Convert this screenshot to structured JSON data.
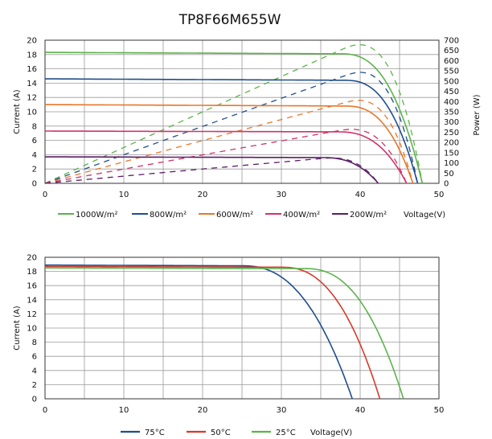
{
  "title": "TP8F66M655W",
  "chart_data": [
    {
      "type": "line",
      "title": "TP8F66M655W",
      "xlabel": "Voltage(V)",
      "ylabel": "Current (A)",
      "y2label": "Power (W)",
      "xlim": [
        0,
        50
      ],
      "ylim": [
        0,
        20
      ],
      "y2lim": [
        0,
        700
      ],
      "x_ticks": [
        0,
        10,
        20,
        30,
        40,
        50
      ],
      "y_ticks": [
        0,
        2,
        4,
        6,
        8,
        10,
        12,
        14,
        16,
        18,
        20
      ],
      "y2_ticks": [
        0,
        50,
        100,
        150,
        200,
        250,
        300,
        350,
        400,
        450,
        500,
        550,
        600,
        650,
        700
      ],
      "grid": true,
      "legend_position": "bottom",
      "series": [
        {
          "name": "1000W/m²",
          "color": "#5cb34a",
          "isc": 18.3,
          "voc": 47.9,
          "knee": 37.5,
          "curr_x": [
            0,
            37.5,
            42,
            45,
            47.9
          ],
          "curr_y": [
            18.3,
            18.1,
            17.0,
            12.0,
            0
          ],
          "pmax": 655,
          "vmp": 40.8
        },
        {
          "name": "800W/m²",
          "color": "#1f4e8c",
          "isc": 14.6,
          "voc": 47.3,
          "knee": 38,
          "curr_x": [
            0,
            38,
            42,
            45,
            47.3
          ],
          "curr_y": [
            14.6,
            14.4,
            13.3,
            9.5,
            0
          ],
          "pmax": 525,
          "vmp": 40.5
        },
        {
          "name": "600W/m²",
          "color": "#e8772a",
          "isc": 11.0,
          "voc": 46.7,
          "knee": 38,
          "curr_x": [
            0,
            38,
            42,
            44.5,
            46.7
          ],
          "curr_y": [
            11.0,
            10.8,
            9.9,
            7.0,
            0
          ],
          "pmax": 395,
          "vmp": 40.3
        },
        {
          "name": "400W/m²",
          "color": "#d0336a",
          "isc": 7.3,
          "voc": 45.9,
          "knee": 37,
          "curr_x": [
            0,
            37,
            41,
            44,
            45.9
          ],
          "curr_y": [
            7.3,
            7.2,
            6.6,
            4.4,
            0
          ],
          "pmax": 262,
          "vmp": 39.8
        },
        {
          "name": "200W/m²",
          "color": "#5a1e66",
          "isc": 3.7,
          "voc": 42.3,
          "knee": 35,
          "curr_x": [
            0,
            35,
            39,
            41,
            42.3
          ],
          "curr_y": [
            3.7,
            3.6,
            3.2,
            2.0,
            0
          ],
          "pmax": 128,
          "vmp": 37.5
        }
      ]
    },
    {
      "type": "line",
      "title": "",
      "xlabel": "Voltage(V)",
      "ylabel": "Current (A)",
      "xlim": [
        0,
        50
      ],
      "ylim": [
        0,
        20
      ],
      "x_ticks": [
        0,
        10,
        20,
        30,
        40,
        50
      ],
      "y_ticks": [
        0,
        2,
        4,
        6,
        8,
        10,
        12,
        14,
        16,
        18,
        20
      ],
      "grid": true,
      "legend_position": "bottom",
      "series": [
        {
          "name": "75°C",
          "color": "#1f4e8c",
          "x": [
            0,
            25,
            30,
            33,
            35,
            37,
            38.5,
            39.0
          ],
          "y": [
            18.9,
            18.8,
            18.2,
            16.5,
            13.5,
            8.5,
            3.5,
            0
          ]
        },
        {
          "name": "50°C",
          "color": "#d43b2a",
          "x": [
            0,
            30,
            35,
            38,
            40,
            41.5,
            42.5
          ],
          "y": [
            18.7,
            18.6,
            18.0,
            16.0,
            12.0,
            6.0,
            0
          ]
        },
        {
          "name": "25°C",
          "color": "#5cb34a",
          "x": [
            0,
            33,
            38,
            41,
            43,
            44.5,
            45.5
          ],
          "y": [
            18.5,
            18.4,
            17.8,
            15.5,
            11.5,
            6.0,
            0
          ]
        }
      ]
    }
  ]
}
